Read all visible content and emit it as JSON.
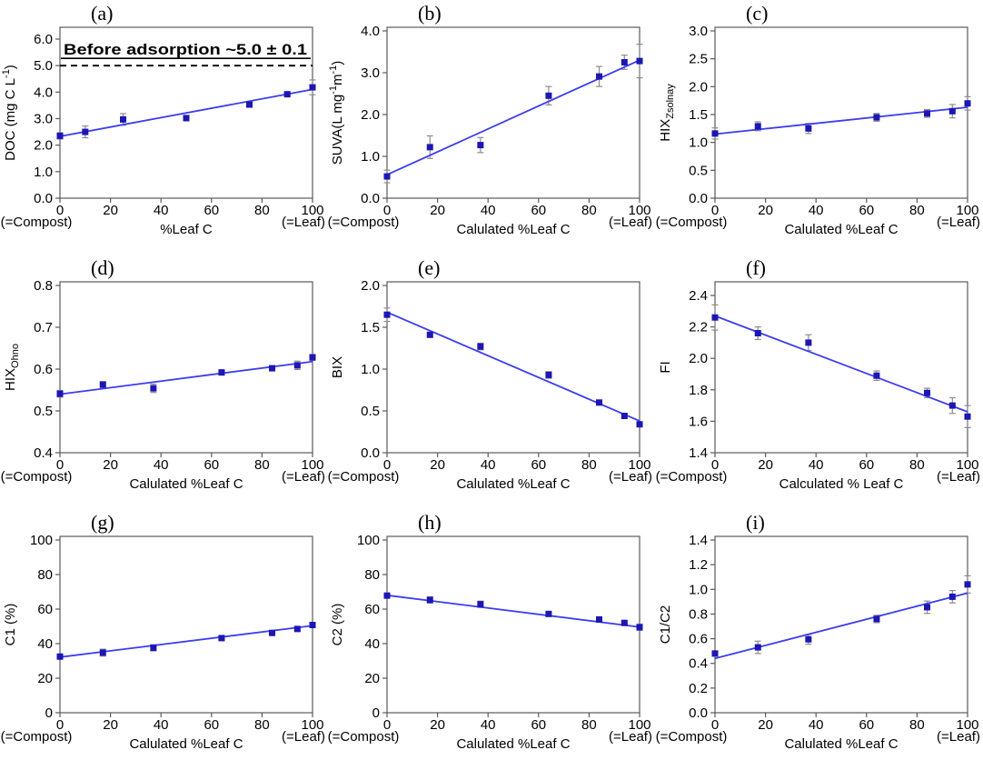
{
  "figure": {
    "description": "3x3 grid of scatter plots of DOM optical properties vs leaf carbon fraction",
    "colors": {
      "marker": "#1c16b4",
      "trend": "#3c3cf0",
      "error": "#8c8c8c",
      "axis": "#5a5a5a",
      "annotation": "#000000"
    }
  },
  "chart_data": [
    {
      "type": "scatter",
      "panel_label": "(a)",
      "ylabel_text": "DOC (mg C L-1)",
      "ylabel_parts": [
        [
          "DOC (mg C L",
          "n"
        ],
        [
          "-1",
          "sup"
        ],
        [
          ")",
          "n"
        ]
      ],
      "xlabel": "%Leaf C",
      "note_left": "(=Compost)",
      "note_right": "(=Leaf)",
      "ylim": [
        0,
        6
      ],
      "ystep": 1,
      "ydec": 1,
      "ypad": 13,
      "xlim": [
        0,
        100
      ],
      "xticks": [
        0,
        20,
        40,
        60,
        80,
        100
      ],
      "x": [
        0,
        10,
        25,
        50,
        75,
        90,
        100
      ],
      "y": [
        2.35,
        2.5,
        2.97,
        3.02,
        3.53,
        3.92,
        4.18
      ],
      "yerr": [
        0.12,
        0.22,
        0.22,
        0.1,
        0.05,
        0.06,
        0.28
      ],
      "trend": [
        [
          0,
          2.33
        ],
        [
          100,
          4.1
        ]
      ],
      "annotation": {
        "text": "Before adsorption ~5.0 ± 0.1",
        "y": 5.0
      }
    },
    {
      "type": "scatter",
      "panel_label": "(b)",
      "ylabel_text": "SUVA(L mg-1m-1)",
      "ylabel_parts": [
        [
          "SUVA(L mg",
          "n"
        ],
        [
          "-1",
          "sup"
        ],
        [
          "m",
          "n"
        ],
        [
          "-1",
          "sup"
        ],
        [
          ")",
          "n"
        ]
      ],
      "xlabel": "Calulated %Leaf C",
      "note_left": "(=Compost)",
      "note_right": "(=Leaf)",
      "ylim": [
        0,
        4
      ],
      "ystep": 1,
      "ydec": 1,
      "ypad": 4,
      "xlim": [
        0,
        100
      ],
      "xticks": [
        0,
        20,
        40,
        60,
        80,
        100
      ],
      "x": [
        0,
        17,
        37,
        64,
        84,
        94,
        100
      ],
      "y": [
        0.52,
        1.22,
        1.27,
        2.45,
        2.91,
        3.25,
        3.28
      ],
      "yerr": [
        0.15,
        0.27,
        0.18,
        0.22,
        0.24,
        0.17,
        0.4
      ],
      "trend": [
        [
          0,
          0.56
        ],
        [
          100,
          3.3
        ]
      ]
    },
    {
      "type": "scatter",
      "panel_label": "(c)",
      "ylabel_text": "HIXZsolnay",
      "ylabel_parts": [
        [
          "HIX",
          "n"
        ],
        [
          "Zsolnay",
          "sub"
        ]
      ],
      "xlabel": "Calulated %Leaf C",
      "note_left": "(=Compost)",
      "note_right": "(=Leaf)",
      "ylim": [
        0,
        3
      ],
      "ystep": 0.5,
      "ydec": 1,
      "ypad": 4,
      "xlim": [
        0,
        100
      ],
      "xticks": [
        0,
        20,
        40,
        60,
        80,
        100
      ],
      "x": [
        0,
        17,
        37,
        64,
        84,
        94,
        100
      ],
      "y": [
        1.16,
        1.29,
        1.25,
        1.45,
        1.52,
        1.56,
        1.7
      ],
      "yerr": [
        0.1,
        0.08,
        0.09,
        0.07,
        0.07,
        0.12,
        0.12
      ],
      "trend": [
        [
          0,
          1.15
        ],
        [
          100,
          1.63
        ]
      ]
    },
    {
      "type": "scatter",
      "panel_label": "(d)",
      "ylabel_text": "HIXOhno",
      "ylabel_parts": [
        [
          "HIX",
          "n"
        ],
        [
          "Ohno",
          "sub"
        ]
      ],
      "xlabel": "Calulated %Leaf C",
      "note_left": "(=Compost)",
      "note_right": "(=Leaf)",
      "ylim": [
        0.4,
        0.8
      ],
      "ystep": 0.1,
      "ydec": 1,
      "ypad": 4,
      "xlim": [
        0,
        100
      ],
      "xticks": [
        0,
        20,
        40,
        60,
        80,
        100
      ],
      "x": [
        0,
        17,
        37,
        64,
        84,
        94,
        100
      ],
      "y": [
        0.541,
        0.563,
        0.554,
        0.592,
        0.602,
        0.609,
        0.628
      ],
      "yerr": [
        0.008,
        0.007,
        0.01,
        0.006,
        0.005,
        0.01,
        0.007
      ],
      "trend": [
        [
          0,
          0.54
        ],
        [
          100,
          0.618
        ]
      ]
    },
    {
      "type": "scatter",
      "panel_label": "(e)",
      "ylabel_text": "BIX",
      "ylabel_parts": [
        [
          "BIX",
          "n"
        ]
      ],
      "xlabel": "Calulated %Leaf C",
      "note_left": "(=Compost)",
      "note_right": "(=Leaf)",
      "ylim": [
        0,
        2
      ],
      "ystep": 0.5,
      "ydec": 1,
      "ypad": 4,
      "xlim": [
        0,
        100
      ],
      "xticks": [
        0,
        20,
        40,
        60,
        80,
        100
      ],
      "x": [
        0,
        17,
        37,
        64,
        84,
        94,
        100
      ],
      "y": [
        1.65,
        1.41,
        1.27,
        0.93,
        0.6,
        0.44,
        0.34
      ],
      "yerr": [
        0.08,
        0.02,
        0.04,
        0.04,
        0.02,
        0.02,
        0.02
      ],
      "trend": [
        [
          0,
          1.68
        ],
        [
          100,
          0.38
        ]
      ]
    },
    {
      "type": "scatter",
      "panel_label": "(f)",
      "ylabel_text": "FI",
      "ylabel_parts": [
        [
          "FI",
          "n"
        ]
      ],
      "xlabel": "Calculated % Leaf C",
      "note_left": "(=Compost)",
      "note_right": "(=Leaf)",
      "ylim": [
        1.4,
        2.4
      ],
      "ystep": 0.2,
      "ydec": 1,
      "ypad": 15,
      "xlim": [
        0,
        100
      ],
      "xticks": [
        0,
        20,
        40,
        60,
        80,
        100
      ],
      "x": [
        0,
        17,
        37,
        64,
        84,
        94,
        100
      ],
      "y": [
        2.26,
        2.16,
        2.1,
        1.89,
        1.78,
        1.7,
        1.63
      ],
      "yerr": [
        0.08,
        0.04,
        0.05,
        0.03,
        0.03,
        0.05,
        0.07
      ],
      "trend": [
        [
          0,
          2.27
        ],
        [
          100,
          1.66
        ]
      ]
    },
    {
      "type": "scatter",
      "panel_label": "(g)",
      "ylabel_text": "C1 (%)",
      "ylabel_parts": [
        [
          "C1 (%)",
          "n"
        ]
      ],
      "xlabel": "Calulated %Leaf C",
      "note_left": "(=Compost)",
      "note_right": "(=Leaf)",
      "ylim": [
        0,
        100
      ],
      "ystep": 20,
      "ydec": 0,
      "ypad": 4,
      "xlim": [
        0,
        100
      ],
      "xticks": [
        0,
        20,
        40,
        60,
        80,
        100
      ],
      "x": [
        0,
        17,
        37,
        64,
        84,
        94,
        100
      ],
      "y": [
        32.5,
        34.8,
        37.6,
        43.2,
        46.2,
        48.5,
        50.8
      ],
      "yerr": [
        1.0,
        2.0,
        1.8,
        0.8,
        0.8,
        0.8,
        1.5
      ],
      "trend": [
        [
          0,
          32.2
        ],
        [
          100,
          50.4
        ]
      ]
    },
    {
      "type": "scatter",
      "panel_label": "(h)",
      "ylabel_text": "C2 (%)",
      "ylabel_parts": [
        [
          "C2 (%)",
          "n"
        ]
      ],
      "xlabel": "Calulated %Leaf C",
      "note_left": "(=Compost)",
      "note_right": "(=Leaf)",
      "ylim": [
        0,
        100
      ],
      "ystep": 20,
      "ydec": 0,
      "ypad": 4,
      "xlim": [
        0,
        100
      ],
      "xticks": [
        0,
        20,
        40,
        60,
        80,
        100
      ],
      "x": [
        0,
        17,
        37,
        64,
        84,
        94,
        100
      ],
      "y": [
        67.8,
        65.3,
        62.8,
        57.2,
        54.0,
        52.0,
        49.5
      ],
      "yerr": [
        0.8,
        1.8,
        1.8,
        0.8,
        0.8,
        0.8,
        1.8
      ],
      "trend": [
        [
          0,
          68.0
        ],
        [
          100,
          49.6
        ]
      ]
    },
    {
      "type": "scatter",
      "panel_label": "(i)",
      "ylabel_text": "C1/C2",
      "ylabel_parts": [
        [
          "C1/C2",
          "n"
        ]
      ],
      "xlabel": "Calulated %Leaf C",
      "note_left": "(=Compost)",
      "note_right": "(=Leaf)",
      "ylim": [
        0,
        1.4
      ],
      "ystep": 0.2,
      "ydec": 1,
      "ypad": 4,
      "xlim": [
        0,
        100
      ],
      "xticks": [
        0,
        20,
        40,
        60,
        80,
        100
      ],
      "x": [
        0,
        17,
        37,
        64,
        84,
        94,
        100
      ],
      "y": [
        0.48,
        0.53,
        0.595,
        0.76,
        0.855,
        0.94,
        1.04
      ],
      "yerr": [
        0.02,
        0.05,
        0.04,
        0.03,
        0.05,
        0.05,
        0.07
      ],
      "trend": [
        [
          0,
          0.44
        ],
        [
          100,
          0.97
        ]
      ]
    }
  ]
}
